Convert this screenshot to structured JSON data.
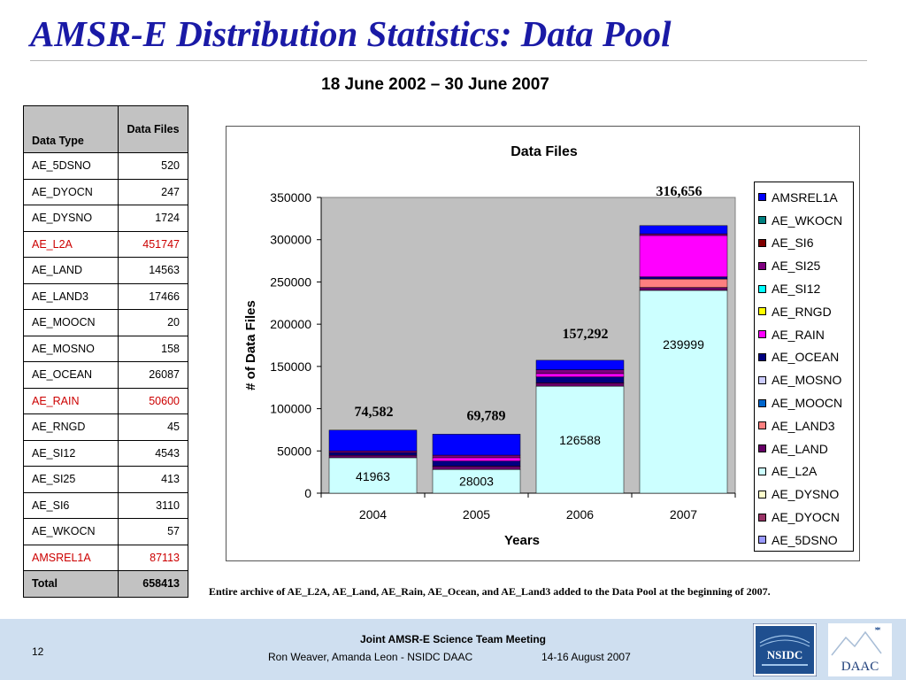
{
  "slide": {
    "title": "AMSR-E Distribution Statistics: Data Pool",
    "subtitle": "18 June 2002 – 30 June 2007",
    "note": "Entire archive  of AE_L2A, AE_Land, AE_Rain, AE_Ocean, and AE_Land3 added to the Data Pool at the beginning of 2007."
  },
  "table": {
    "header_type": "Data Type",
    "header_files": "Data Files",
    "rows": [
      {
        "type": "AE_5DSNO",
        "files": "520",
        "highlight": false
      },
      {
        "type": "AE_DYOCN",
        "files": "247",
        "highlight": false
      },
      {
        "type": "AE_DYSNO",
        "files": "1724",
        "highlight": false
      },
      {
        "type": "AE_L2A",
        "files": "451747",
        "highlight": true
      },
      {
        "type": "AE_LAND",
        "files": "14563",
        "highlight": false
      },
      {
        "type": "AE_LAND3",
        "files": "17466",
        "highlight": false
      },
      {
        "type": "AE_MOOCN",
        "files": "20",
        "highlight": false
      },
      {
        "type": "AE_MOSNO",
        "files": "158",
        "highlight": false
      },
      {
        "type": "AE_OCEAN",
        "files": "26087",
        "highlight": false
      },
      {
        "type": "AE_RAIN",
        "files": "50600",
        "highlight": true
      },
      {
        "type": "AE_RNGD",
        "files": "45",
        "highlight": false
      },
      {
        "type": "AE_SI12",
        "files": "4543",
        "highlight": false
      },
      {
        "type": "AE_SI25",
        "files": "413",
        "highlight": false
      },
      {
        "type": "AE_SI6",
        "files": "3110",
        "highlight": false
      },
      {
        "type": "AE_WKOCN",
        "files": "57",
        "highlight": false
      },
      {
        "type": "AMSREL1A",
        "files": "87113",
        "highlight": true
      }
    ],
    "total_label": "Total",
    "total_value": "658413"
  },
  "chart_data": {
    "type": "bar",
    "stacked": true,
    "title": "Data Files",
    "xlabel": "Years",
    "ylabel": "# of Data Files",
    "categories": [
      "2004",
      "2005",
      "2006",
      "2007"
    ],
    "ylim": [
      0,
      350000
    ],
    "yticks": [
      "0",
      "50000",
      "100000",
      "150000",
      "200000",
      "250000",
      "300000",
      "350000"
    ],
    "plot_background": "#c0c0c0",
    "grid": false,
    "legend_position": "right",
    "series": [
      {
        "name": "AE_5DSNO",
        "color": "#9999ff",
        "values": [
          0,
          0,
          0,
          0
        ]
      },
      {
        "name": "AE_DYOCN",
        "color": "#993366",
        "values": [
          0,
          0,
          0,
          0
        ]
      },
      {
        "name": "AE_DYSNO",
        "color": "#ffffcc",
        "values": [
          0,
          0,
          0,
          0
        ]
      },
      {
        "name": "AE_L2A",
        "color": "#ccffff",
        "values": [
          41963,
          28003,
          126588,
          239999
        ]
      },
      {
        "name": "AE_LAND",
        "color": "#660066",
        "values": [
          3000,
          4000,
          4000,
          3500
        ]
      },
      {
        "name": "AE_LAND3",
        "color": "#ff8080",
        "values": [
          0,
          0,
          0,
          10000
        ]
      },
      {
        "name": "AE_MOOCN",
        "color": "#0066cc",
        "values": [
          0,
          0,
          0,
          0
        ]
      },
      {
        "name": "AE_MOSNO",
        "color": "#ccccff",
        "values": [
          0,
          0,
          0,
          0
        ]
      },
      {
        "name": "AE_OCEAN",
        "color": "#000080",
        "values": [
          3000,
          6000,
          7000,
          2500
        ]
      },
      {
        "name": "AE_RAIN",
        "color": "#ff00ff",
        "values": [
          0,
          4000,
          4000,
          49000
        ]
      },
      {
        "name": "AE_RNGD",
        "color": "#ffff00",
        "values": [
          0,
          0,
          0,
          0
        ]
      },
      {
        "name": "AE_SI12",
        "color": "#00ffff",
        "values": [
          0,
          0,
          0,
          0
        ]
      },
      {
        "name": "AE_SI25",
        "color": "#800080",
        "values": [
          2000,
          3000,
          4500,
          2000
        ]
      },
      {
        "name": "AE_SI6",
        "color": "#800000",
        "values": [
          0,
          0,
          0,
          0
        ]
      },
      {
        "name": "AE_WKOCN",
        "color": "#008080",
        "values": [
          0,
          0,
          0,
          0
        ]
      },
      {
        "name": "AMSREL1A",
        "color": "#0000ff",
        "values": [
          24619,
          24786,
          11204,
          9657
        ]
      }
    ],
    "legend_order": [
      "AMSREL1A",
      "AE_WKOCN",
      "AE_SI6",
      "AE_SI25",
      "AE_SI12",
      "AE_RNGD",
      "AE_RAIN",
      "AE_OCEAN",
      "AE_MOSNO",
      "AE_MOOCN",
      "AE_LAND3",
      "AE_LAND",
      "AE_L2A",
      "AE_DYSNO",
      "AE_DYOCN",
      "AE_5DSNO"
    ],
    "inside_labels": [
      "41963",
      "28003",
      "126588",
      "239999"
    ],
    "total_labels": [
      "74,582",
      "69,789",
      "157,292",
      "316,656"
    ]
  },
  "footer": {
    "page": "12",
    "meeting": "Joint AMSR-E Science Team Meeting",
    "authors": "Ron Weaver, Amanda Leon - NSIDC DAAC",
    "dates": "14-16 August 2007",
    "logo_nsidc_text": "NSIDC",
    "logo_daac_text": "DAAC"
  }
}
